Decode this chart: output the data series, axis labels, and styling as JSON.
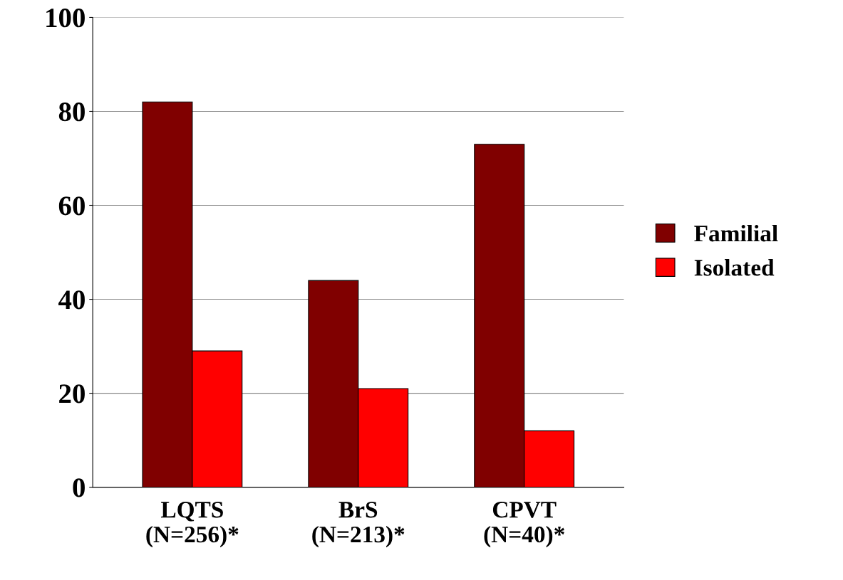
{
  "chart_data": {
    "type": "bar",
    "categories": [
      "LQTS\n(N=256)*",
      "BrS\n(N=213)*",
      "CPVT\n(N=40)*"
    ],
    "series": [
      {
        "name": "Familial",
        "color": "#800000",
        "values": [
          82,
          44,
          73
        ]
      },
      {
        "name": "Isolated",
        "color": "#ff0000",
        "values": [
          29,
          21,
          12
        ]
      }
    ],
    "ylim": [
      0,
      100
    ],
    "yticks": [
      0,
      20,
      40,
      60,
      80,
      100
    ],
    "grid": "y",
    "legend": "right"
  }
}
